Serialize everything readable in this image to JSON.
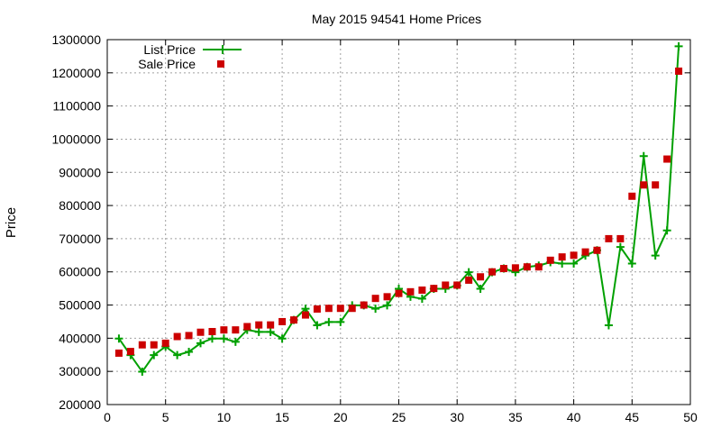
{
  "chart_data": {
    "type": "line",
    "title": "May 2015 94541 Home Prices",
    "xlabel": "",
    "ylabel": "Price",
    "xlim": [
      0,
      50
    ],
    "ylim": [
      200000,
      1300000
    ],
    "x_ticks": [
      0,
      5,
      10,
      15,
      20,
      25,
      30,
      35,
      40,
      45,
      50
    ],
    "y_ticks": [
      200000,
      300000,
      400000,
      500000,
      600000,
      700000,
      800000,
      900000,
      1000000,
      1100000,
      1200000,
      1300000
    ],
    "grid": true,
    "legend_position": "top-left",
    "series": [
      {
        "name": "List Price",
        "style": "line-with-plus-markers",
        "color": "#00a000",
        "x": [
          1,
          2,
          3,
          4,
          5,
          6,
          7,
          8,
          9,
          10,
          11,
          12,
          13,
          14,
          15,
          16,
          17,
          18,
          19,
          20,
          21,
          22,
          23,
          24,
          25,
          26,
          27,
          28,
          29,
          30,
          31,
          32,
          33,
          34,
          35,
          36,
          37,
          38,
          39,
          40,
          41,
          42,
          43,
          44,
          45,
          46,
          47,
          48,
          49
        ],
        "values": [
          399000,
          349000,
          299000,
          349000,
          375000,
          349000,
          359000,
          385000,
          399000,
          399000,
          389000,
          425000,
          419000,
          419000,
          399000,
          455000,
          489000,
          439000,
          449000,
          449000,
          499000,
          499000,
          489000,
          499000,
          549000,
          525000,
          519000,
          549000,
          549000,
          559000,
          599000,
          549000,
          599000,
          610000,
          599000,
          615000,
          619000,
          629000,
          625000,
          625000,
          649000,
          665000,
          439000,
          675000,
          625000,
          949000,
          649000,
          725000,
          1280000
        ]
      },
      {
        "name": "Sale Price",
        "style": "square-markers",
        "color": "#cc0000",
        "x": [
          1,
          2,
          3,
          4,
          5,
          6,
          7,
          8,
          9,
          10,
          11,
          12,
          13,
          14,
          15,
          16,
          17,
          18,
          19,
          20,
          21,
          22,
          23,
          24,
          25,
          26,
          27,
          28,
          29,
          30,
          31,
          32,
          33,
          34,
          35,
          36,
          37,
          38,
          39,
          40,
          41,
          42,
          43,
          44,
          45,
          46,
          47,
          48,
          49
        ],
        "values": [
          355000,
          360000,
          380000,
          380000,
          385000,
          405000,
          408000,
          418000,
          420000,
          425000,
          425000,
          435000,
          440000,
          440000,
          450000,
          455000,
          470000,
          488000,
          490000,
          490000,
          490000,
          500000,
          520000,
          525000,
          535000,
          540000,
          545000,
          550000,
          560000,
          560000,
          575000,
          585000,
          600000,
          610000,
          612000,
          615000,
          615000,
          635000,
          645000,
          650000,
          660000,
          665000,
          700000,
          700000,
          828000,
          862000,
          862000,
          940000,
          1205000
        ]
      }
    ]
  }
}
